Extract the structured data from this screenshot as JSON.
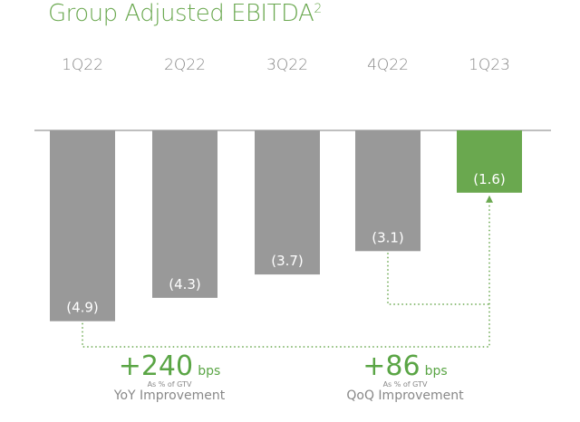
{
  "chart_data": {
    "type": "bar",
    "title": "Group Adjusted EBITDA",
    "title_superscript": "2",
    "categories": [
      "1Q22",
      "2Q22",
      "3Q22",
      "4Q22",
      "1Q23"
    ],
    "values": [
      -4.9,
      -4.3,
      -3.7,
      -3.1,
      -1.6
    ],
    "data_labels": [
      "(4.9)",
      "(4.3)",
      "(3.7)",
      "(3.1)",
      "(1.6)"
    ],
    "highlight_index": 4,
    "colors": {
      "bar": "#999999",
      "highlight": "#6aa84f",
      "title": "#6aa84f",
      "connector": "#6aa84f"
    },
    "annotations": [
      {
        "value": "+240",
        "unit": "bps",
        "note": "As % of GTV",
        "label": "YoY Improvement",
        "from": "1Q22",
        "to": "1Q23"
      },
      {
        "value": "+86",
        "unit": "bps",
        "note": "As % of GTV",
        "label": "QoQ Improvement",
        "from": "4Q22",
        "to": "1Q23"
      }
    ]
  }
}
